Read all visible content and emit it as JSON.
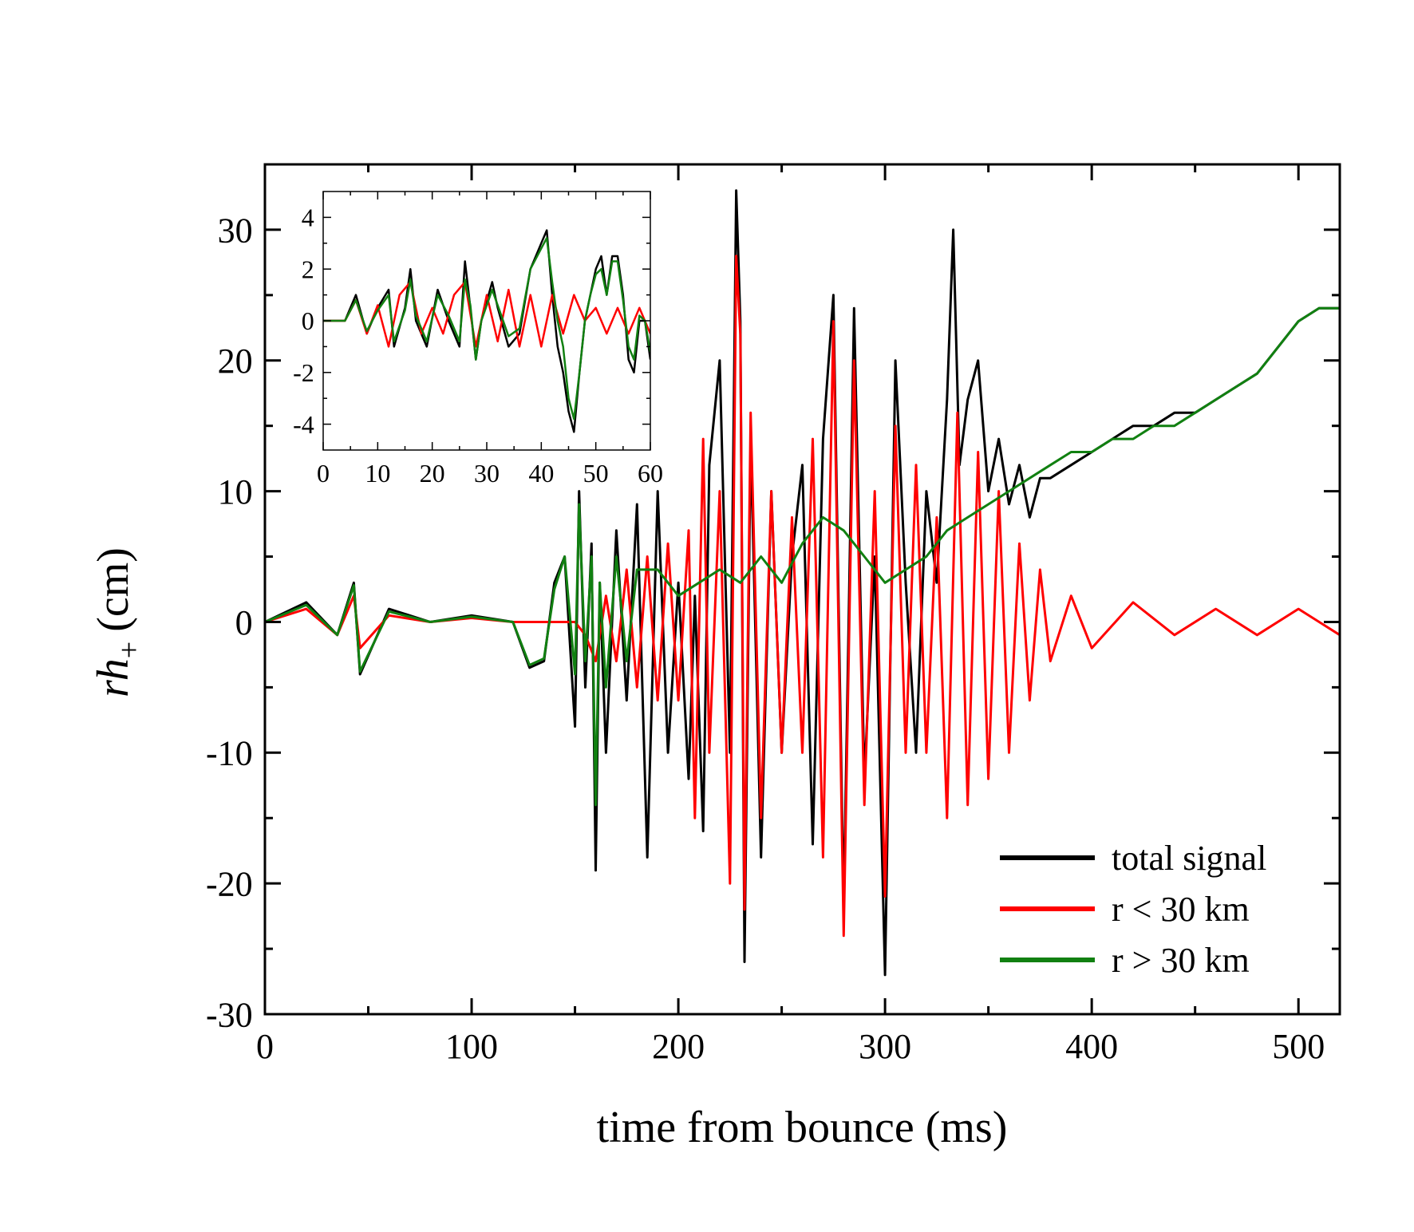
{
  "chart_data": [
    {
      "type": "line",
      "xlabel": "time from bounce (ms)",
      "ylabel": "rh",
      "ylabel_subscript": "+",
      "ylabel_unit": "(cm)",
      "xlim": [
        0,
        520
      ],
      "ylim": [
        -30,
        35
      ],
      "xticks": [
        0,
        100,
        200,
        300,
        400,
        500
      ],
      "yticks": [
        -30,
        -20,
        -10,
        0,
        10,
        20,
        30
      ],
      "grid": false,
      "legend_position": "bottom-right",
      "series": [
        {
          "name": "total signal",
          "color": "#000000",
          "x": [
            0,
            20,
            35,
            43,
            46,
            60,
            80,
            100,
            120,
            128,
            135,
            140,
            145,
            150,
            152,
            155,
            158,
            160,
            162,
            165,
            170,
            175,
            180,
            185,
            190,
            195,
            200,
            205,
            208,
            212,
            215,
            220,
            225,
            228,
            230,
            232,
            235,
            240,
            245,
            250,
            255,
            260,
            265,
            270,
            275,
            280,
            285,
            290,
            295,
            300,
            305,
            310,
            315,
            320,
            325,
            330,
            333,
            336,
            340,
            345,
            350,
            355,
            360,
            365,
            370,
            375,
            380,
            390,
            400,
            410,
            420,
            430,
            440,
            450,
            460,
            470,
            480,
            490,
            500,
            510,
            520
          ],
          "y": [
            0,
            1.5,
            -1,
            3,
            -4,
            1,
            0,
            0.5,
            0,
            -3.5,
            -3,
            3,
            5,
            -8,
            10,
            -5,
            6,
            -19,
            3,
            -10,
            7,
            -6,
            9,
            -18,
            10,
            -10,
            3,
            -12,
            2,
            -16,
            12,
            20,
            -10,
            33,
            23,
            -26,
            14,
            -18,
            10,
            -10,
            5,
            12,
            -17,
            14,
            25,
            -22,
            24,
            -12,
            5,
            -27,
            20,
            3,
            -10,
            10,
            3,
            17,
            30,
            12,
            17,
            20,
            10,
            14,
            9,
            12,
            8,
            11,
            11,
            12,
            13,
            14,
            15,
            15,
            16,
            16,
            17,
            18,
            19,
            21,
            23,
            24,
            24
          ]
        },
        {
          "name": "r < 30 km",
          "color": "#ff0000",
          "x": [
            0,
            20,
            35,
            43,
            46,
            60,
            80,
            100,
            120,
            140,
            150,
            155,
            160,
            165,
            170,
            175,
            180,
            185,
            190,
            195,
            200,
            205,
            208,
            212,
            215,
            220,
            225,
            228,
            230,
            232,
            235,
            240,
            245,
            250,
            255,
            260,
            265,
            270,
            275,
            280,
            285,
            290,
            295,
            300,
            305,
            310,
            315,
            320,
            325,
            330,
            335,
            340,
            345,
            350,
            355,
            360,
            365,
            370,
            375,
            380,
            390,
            400,
            420,
            440,
            460,
            480,
            500,
            520
          ],
          "y": [
            0,
            1,
            -1,
            2,
            -2,
            0.5,
            0,
            0.3,
            0,
            0,
            0,
            -1,
            -3,
            2,
            -3,
            4,
            -5,
            5,
            -6,
            6,
            -6,
            7,
            -15,
            14,
            -10,
            10,
            -20,
            28,
            22,
            -22,
            16,
            -15,
            10,
            -10,
            8,
            -10,
            14,
            -18,
            23,
            -24,
            20,
            -14,
            10,
            -21,
            15,
            -10,
            12,
            -10,
            8,
            -15,
            16,
            -14,
            13,
            -12,
            10,
            -10,
            6,
            -6,
            4,
            -3,
            2,
            -2,
            1.5,
            -1,
            1,
            -1,
            1,
            -1
          ]
        },
        {
          "name": "r > 30 km",
          "color": "#118011",
          "x": [
            0,
            20,
            35,
            43,
            46,
            60,
            80,
            100,
            120,
            128,
            135,
            140,
            145,
            150,
            152,
            155,
            158,
            160,
            162,
            165,
            170,
            175,
            180,
            190,
            200,
            210,
            220,
            230,
            240,
            250,
            260,
            270,
            280,
            290,
            300,
            310,
            320,
            330,
            340,
            350,
            360,
            370,
            380,
            390,
            400,
            410,
            420,
            430,
            440,
            450,
            460,
            470,
            480,
            490,
            500,
            510,
            520
          ],
          "y": [
            0,
            1.3,
            -1,
            2.8,
            -3.8,
            0.8,
            0,
            0.4,
            0,
            -3.3,
            -2.8,
            2.5,
            5,
            -4,
            9,
            -3,
            5,
            -14,
            3,
            -5,
            5,
            -3,
            4,
            4,
            2,
            3,
            4,
            3,
            5,
            3,
            6,
            8,
            7,
            5,
            3,
            4,
            5,
            7,
            8,
            9,
            10,
            11,
            12,
            13,
            13,
            14,
            14,
            15,
            15,
            16,
            17,
            18,
            19,
            21,
            23,
            24,
            24
          ]
        }
      ]
    },
    {
      "type": "line",
      "inset": true,
      "xlim": [
        0,
        60
      ],
      "ylim": [
        -5,
        5
      ],
      "xticks": [
        0,
        10,
        20,
        30,
        40,
        50,
        60
      ],
      "yticks": [
        -4,
        -2,
        0,
        2,
        4
      ],
      "series": [
        {
          "name": "total signal",
          "color": "#000000",
          "x": [
            0,
            4,
            6,
            8,
            10,
            12,
            13,
            15,
            16,
            17,
            19,
            21,
            23,
            25,
            26,
            27,
            28,
            29,
            31,
            32,
            34,
            36,
            38,
            40,
            41,
            42,
            43,
            44,
            45,
            46,
            47,
            48,
            49,
            50,
            51,
            52,
            53,
            54,
            55,
            56,
            57,
            58,
            59,
            60
          ],
          "y": [
            0,
            0,
            1,
            -0.5,
            0.5,
            1.2,
            -1,
            0.5,
            2,
            0,
            -1,
            1.2,
            0,
            -1,
            2.3,
            0.5,
            -1.5,
            0,
            1.5,
            0.5,
            -1,
            -0.5,
            2,
            3,
            3.5,
            1,
            -1,
            -2,
            -3.5,
            -4.3,
            -2,
            0,
            1,
            2,
            2.5,
            1,
            2.5,
            2.5,
            1,
            -1.5,
            -2,
            0,
            0,
            -1.5
          ]
        },
        {
          "name": "r < 30 km",
          "color": "#ff0000",
          "x": [
            0,
            4,
            6,
            8,
            10,
            12,
            14,
            16,
            18,
            20,
            22,
            24,
            26,
            28,
            30,
            32,
            34,
            36,
            38,
            40,
            42,
            44,
            46,
            48,
            50,
            52,
            54,
            56,
            58,
            60
          ],
          "y": [
            0,
            0,
            0.8,
            -0.5,
            0.6,
            -1,
            1,
            1.5,
            -0.5,
            0.5,
            -0.5,
            1,
            1.5,
            -1,
            1,
            -0.8,
            1.2,
            -1,
            1,
            -1,
            1,
            -0.5,
            1,
            0,
            0.5,
            -0.5,
            0.5,
            -0.5,
            0.5,
            -0.5
          ]
        },
        {
          "name": "r > 30 km",
          "color": "#118011",
          "x": [
            0,
            4,
            6,
            8,
            10,
            12,
            13,
            15,
            16,
            17,
            19,
            21,
            23,
            25,
            26,
            27,
            28,
            29,
            31,
            32,
            34,
            36,
            38,
            40,
            41,
            42,
            43,
            44,
            45,
            46,
            47,
            48,
            49,
            50,
            51,
            52,
            53,
            54,
            55,
            56,
            57,
            58,
            59,
            60
          ],
          "y": [
            0,
            0,
            0.8,
            -0.4,
            0.4,
            1,
            -0.8,
            0.4,
            1.6,
            0.2,
            -0.8,
            1,
            0.2,
            -0.8,
            1.6,
            0.6,
            -1.5,
            0,
            1.2,
            0.6,
            -0.6,
            -0.3,
            2,
            2.8,
            3.2,
            1.5,
            0,
            -1,
            -3,
            -3.8,
            -2,
            0,
            1,
            1.8,
            2,
            1,
            2.3,
            2.3,
            0.8,
            -1,
            -1.5,
            0.2,
            0,
            -1.2
          ]
        }
      ]
    }
  ]
}
